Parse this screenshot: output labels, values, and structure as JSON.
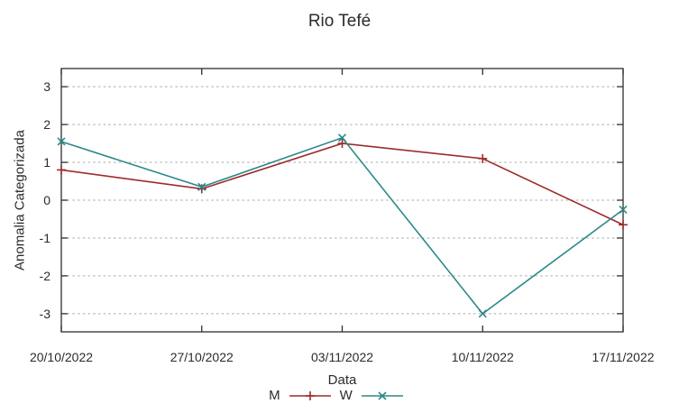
{
  "window": {
    "background": "#ffffff"
  },
  "chart_data": {
    "type": "line",
    "title": "Rio Tefé",
    "xlabel": "Data",
    "ylabel": "Anomalia Categorizada",
    "categories": [
      "20/10/2022",
      "27/10/2022",
      "03/11/2022",
      "10/11/2022",
      "17/11/2022"
    ],
    "yticks": [
      3,
      2,
      1,
      0,
      -1,
      -2,
      -3
    ],
    "ylim": [
      -3.48,
      3.48
    ],
    "grid": "horizontal-dashed",
    "legend_position": "bottom-center",
    "series": [
      {
        "name": "M",
        "color": "#9e2b2b",
        "marker": "plus",
        "values": [
          0.8,
          0.3,
          1.5,
          1.1,
          -0.65
        ]
      },
      {
        "name": "W",
        "color": "#2d8888",
        "marker": "cross",
        "values": [
          1.55,
          0.35,
          1.65,
          -3.0,
          -0.25
        ]
      }
    ],
    "colors": {
      "axis": "#2e2e2e",
      "text": "#2b2b2b",
      "grid": "#aaaaaa"
    }
  }
}
